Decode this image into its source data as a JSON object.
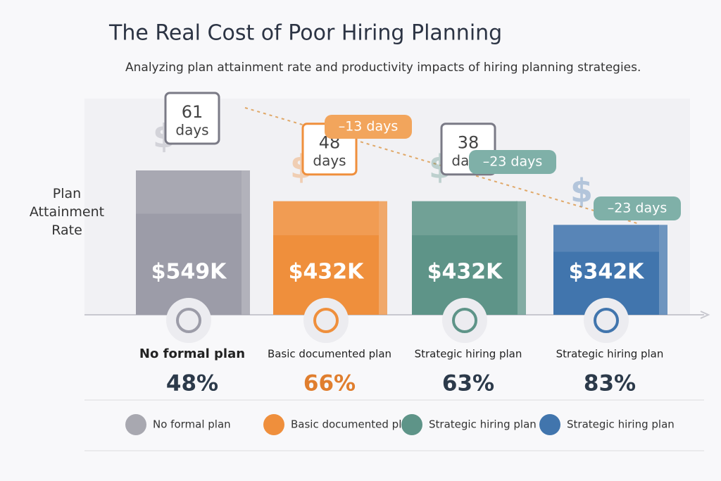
{
  "chart_data": {
    "type": "bar",
    "title": "The Real Cost of Poor Hiring Planning",
    "subtitle": "Analyzing plan attainment rate and productivity impacts of hiring planning strategies.",
    "y_label": "Plan Attainment Rate",
    "categories": [
      "No formal plan",
      "Basic documented plan",
      "Strategic hiring plan",
      "Strategic hiring plan"
    ],
    "values": [
      549,
      432,
      432,
      342
    ],
    "value_labels": [
      "$549K",
      "$432K",
      "$432K",
      "$342K"
    ],
    "colors": [
      "#9c9ca8",
      "#ef8f3c",
      "#5e9488",
      "#4175ad"
    ],
    "days": {
      "values": [
        61,
        48,
        38,
        null
      ],
      "unit": "days"
    },
    "day_changes": {
      "values": [
        -13,
        -23,
        -23
      ],
      "value_labels": [
        "–13 days",
        "–23 days",
        "–23 days"
      ]
    },
    "rates": {
      "values": [
        48,
        66,
        63,
        83
      ],
      "value_labels": [
        "48%",
        "66%",
        "63%",
        "83%"
      ]
    }
  }
}
